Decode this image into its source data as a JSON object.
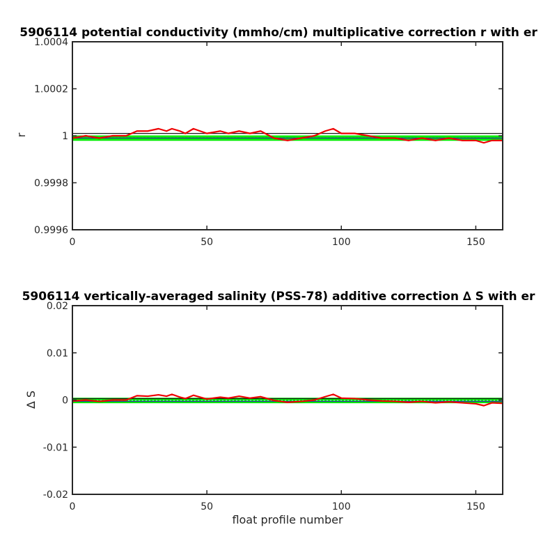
{
  "chart_data": [
    {
      "type": "line",
      "title": "5906114 potential conductivity (mmho/cm) multiplicative correction r with er",
      "xlabel": "",
      "ylabel": "r",
      "xlim": [
        0,
        160
      ],
      "ylim": [
        0.9996,
        1.0004
      ],
      "xticks": [
        0,
        50,
        100,
        150
      ],
      "xtick_labels": [
        "0",
        "50",
        "100",
        "150"
      ],
      "yticks": [
        0.9996,
        0.9998,
        1,
        1.0002,
        1.0004
      ],
      "ytick_labels": [
        "0.9996",
        "0.9998",
        "1",
        "1.0002",
        "1.0004"
      ],
      "grid": false,
      "reference_lines": [
        1.00001,
        0.99999
      ],
      "series": [
        {
          "color": "#00ee00",
          "style": "error band",
          "x": [
            0,
            20,
            40,
            60,
            80,
            100,
            120,
            140,
            160
          ],
          "y": [
            0.99999,
            0.99999,
            0.99999,
            0.99999,
            0.99999,
            0.99999,
            0.99999,
            0.99999,
            0.99999
          ],
          "err": [
            1e-05,
            1e-05,
            1e-05,
            1e-05,
            1e-05,
            1e-05,
            1e-05,
            1e-05,
            1e-05
          ]
        },
        {
          "color": "#ee0000",
          "style": "line",
          "x": [
            0,
            5,
            10,
            15,
            20,
            24,
            28,
            32,
            35,
            37,
            40,
            42,
            45,
            50,
            55,
            58,
            62,
            66,
            70,
            75,
            80,
            85,
            90,
            94,
            97,
            100,
            105,
            110,
            115,
            120,
            125,
            130,
            135,
            140,
            145,
            150,
            153,
            156,
            160
          ],
          "y": [
            0.99999,
            1.0,
            0.99999,
            1.0,
            1.0,
            1.00002,
            1.00002,
            1.00003,
            1.00002,
            1.00003,
            1.00002,
            1.00001,
            1.00003,
            1.00001,
            1.00002,
            1.00001,
            1.00002,
            1.00001,
            1.00002,
            0.99999,
            0.99998,
            0.99999,
            1.0,
            1.00002,
            1.00003,
            1.00001,
            1.00001,
            1.0,
            0.99999,
            0.99999,
            0.99998,
            0.99999,
            0.99998,
            0.99999,
            0.99998,
            0.99998,
            0.99997,
            0.99998,
            0.99998
          ]
        }
      ]
    },
    {
      "type": "line",
      "title": "5906114 vertically-averaged salinity (PSS-78) additive correction ∆ S with er",
      "xlabel": "float profile number",
      "ylabel": "∆ S",
      "xlim": [
        0,
        160
      ],
      "ylim": [
        -0.02,
        0.02
      ],
      "xticks": [
        0,
        50,
        100,
        150
      ],
      "xtick_labels": [
        "0",
        "50",
        "100",
        "150"
      ],
      "yticks": [
        -0.02,
        -0.01,
        0,
        0.01,
        0.02
      ],
      "ytick_labels": [
        "-0.02",
        "-0.01",
        "0",
        "0.01",
        "0.02"
      ],
      "grid": false,
      "reference_lines": [
        0.0003,
        -0.0003
      ],
      "series": [
        {
          "color": "#00ee00",
          "style": "error band",
          "x": [
            0,
            20,
            40,
            60,
            80,
            100,
            120,
            140,
            160
          ],
          "y": [
            -0.0001,
            -0.0001,
            -0.0001,
            -0.0001,
            -0.0001,
            -0.0001,
            -0.0001,
            -0.0001,
            -0.0001
          ],
          "err": [
            0.0005,
            0.0005,
            0.0005,
            0.0005,
            0.0005,
            0.0005,
            0.0005,
            0.0005,
            0.0005
          ]
        },
        {
          "color": "#ee0000",
          "style": "line",
          "x": [
            0,
            5,
            10,
            15,
            20,
            24,
            28,
            32,
            35,
            37,
            40,
            42,
            45,
            50,
            55,
            58,
            62,
            66,
            70,
            75,
            80,
            85,
            90,
            94,
            97,
            100,
            105,
            110,
            115,
            120,
            125,
            130,
            135,
            140,
            145,
            150,
            153,
            156,
            160
          ],
          "y": [
            -0.0002,
            0.0,
            -0.0003,
            0.0,
            0.0,
            0.0009,
            0.0008,
            0.0011,
            0.0008,
            0.0012,
            0.0006,
            0.0003,
            0.001,
            0.0002,
            0.0006,
            0.0004,
            0.0008,
            0.0004,
            0.0007,
            -0.0001,
            -0.0005,
            -0.0003,
            0.0,
            0.0007,
            0.0012,
            0.0004,
            0.0003,
            0.0,
            -0.0002,
            -0.0003,
            -0.0005,
            -0.0003,
            -0.0006,
            -0.0004,
            -0.0006,
            -0.0008,
            -0.0012,
            -0.0006,
            -0.0007
          ]
        }
      ]
    }
  ]
}
